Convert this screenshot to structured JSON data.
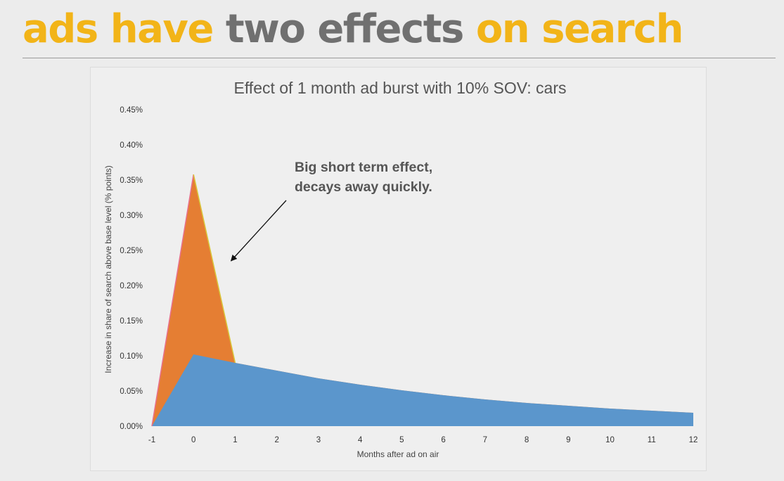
{
  "slide": {
    "title_parts": [
      {
        "text": "ads have",
        "color": "#f2b418"
      },
      {
        "text": "two effects",
        "color": "#707070"
      },
      {
        "text": "on search",
        "color": "#f2b418"
      }
    ]
  },
  "chart_data": {
    "type": "area",
    "title": "Effect of 1 month ad burst with 10% SOV: cars",
    "xlabel": "Months after ad on air",
    "ylabel": "Increase in share of search above base level (% points)",
    "x": [
      -1,
      0,
      1,
      2,
      3,
      4,
      5,
      6,
      7,
      8,
      9,
      10,
      11,
      12
    ],
    "x_tick_labels": [
      "-1",
      "0",
      "1",
      "2",
      "3",
      "4",
      "5",
      "6",
      "7",
      "8",
      "9",
      "10",
      "11",
      "12"
    ],
    "ylim": [
      0,
      0.45
    ],
    "y_ticks": [
      0,
      0.05,
      0.1,
      0.15,
      0.2,
      0.25,
      0.3,
      0.35,
      0.4,
      0.45
    ],
    "y_tick_labels": [
      "0.00%",
      "0.05%",
      "0.10%",
      "0.15%",
      "0.20%",
      "0.25%",
      "0.30%",
      "0.35%",
      "0.40%",
      "0.45%"
    ],
    "grid": false,
    "series": [
      {
        "color": "#e57e33",
        "values": [
          0,
          0.358,
          0.09,
          0.079,
          0.068,
          0.059,
          0.051,
          0.044,
          0.038,
          0.033,
          0.029,
          0.025,
          0.022,
          0.019
        ]
      },
      {
        "color": "#5b96cc",
        "values": [
          0,
          0.102,
          0.09,
          0.079,
          0.068,
          0.059,
          0.051,
          0.044,
          0.038,
          0.033,
          0.029,
          0.025,
          0.022,
          0.019
        ]
      }
    ],
    "annotation": {
      "lines": [
        "Big short term effect,",
        "decays away quickly."
      ],
      "arrow_target": {
        "x": 0.9,
        "y": 0.235
      }
    }
  }
}
